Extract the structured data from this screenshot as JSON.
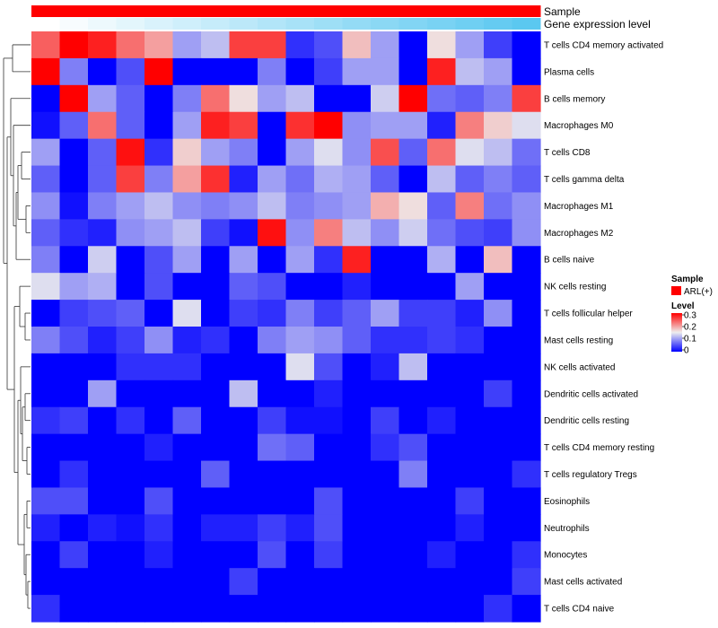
{
  "chart_data": {
    "type": "heatmap",
    "title": "",
    "annotations": [
      {
        "name": "Sample"
      },
      {
        "name": "Gene expression level"
      }
    ],
    "columns": 18,
    "rows": [
      "T cells CD4 memory activated",
      "Plasma cells",
      "B cells memory",
      "Macrophages M0",
      "T cells CD8",
      "T cells gamma delta",
      "Macrophages M1",
      "Macrophages M2",
      "B cells naive",
      "NK cells resting",
      "T cells follicular helper",
      "Mast cells resting",
      "NK cells activated",
      "Dendritic cells activated",
      "Dendritic cells resting",
      "T cells CD4 memory resting",
      "T cells regulatory  Tregs",
      "Eosinophils",
      "Neutrophils",
      "Monocytes",
      "Mast cells activated",
      "T cells CD4 naive"
    ],
    "values": [
      [
        0.24,
        0.32,
        0.28,
        0.23,
        0.2,
        0.1,
        0.12,
        0.26,
        0.26,
        0.03,
        0.05,
        0.18,
        0.1,
        0.0,
        0.16,
        0.1,
        0.04,
        0.0
      ],
      [
        0.32,
        0.08,
        0.0,
        0.05,
        0.32,
        0.0,
        0.0,
        0.0,
        0.08,
        0.0,
        0.04,
        0.1,
        0.1,
        0.0,
        0.28,
        0.12,
        0.1,
        0.0
      ],
      [
        0.0,
        0.32,
        0.1,
        0.06,
        0.0,
        0.08,
        0.23,
        0.16,
        0.1,
        0.12,
        0.0,
        0.0,
        0.13,
        0.32,
        0.07,
        0.06,
        0.08,
        0.26
      ],
      [
        0.01,
        0.06,
        0.23,
        0.06,
        0.0,
        0.1,
        0.28,
        0.26,
        0.0,
        0.27,
        0.32,
        0.09,
        0.1,
        0.1,
        0.02,
        0.22,
        0.17,
        0.14
      ],
      [
        0.1,
        0.0,
        0.06,
        0.29,
        0.03,
        0.17,
        0.1,
        0.08,
        0.0,
        0.1,
        0.14,
        0.09,
        0.25,
        0.06,
        0.23,
        0.14,
        0.12,
        0.07
      ],
      [
        0.06,
        0.0,
        0.06,
        0.26,
        0.08,
        0.2,
        0.27,
        0.02,
        0.1,
        0.07,
        0.11,
        0.1,
        0.06,
        0.0,
        0.12,
        0.06,
        0.08,
        0.06
      ],
      [
        0.09,
        0.01,
        0.08,
        0.1,
        0.12,
        0.09,
        0.08,
        0.09,
        0.12,
        0.08,
        0.09,
        0.1,
        0.19,
        0.16,
        0.06,
        0.22,
        0.07,
        0.09
      ],
      [
        0.06,
        0.03,
        0.02,
        0.09,
        0.1,
        0.12,
        0.04,
        0.01,
        0.29,
        0.09,
        0.22,
        0.12,
        0.09,
        0.13,
        0.07,
        0.05,
        0.04,
        0.09
      ],
      [
        0.08,
        0.0,
        0.13,
        0.0,
        0.05,
        0.1,
        0.0,
        0.1,
        0.0,
        0.1,
        0.03,
        0.28,
        0.0,
        0.0,
        0.11,
        0.0,
        0.18,
        0.0
      ],
      [
        0.14,
        0.1,
        0.11,
        0.0,
        0.05,
        0.0,
        0.0,
        0.06,
        0.05,
        0.0,
        0.0,
        0.02,
        0.0,
        0.0,
        0.0,
        0.1,
        0.0,
        0.0
      ],
      [
        0.0,
        0.04,
        0.05,
        0.06,
        0.0,
        0.14,
        0.0,
        0.04,
        0.03,
        0.08,
        0.04,
        0.06,
        0.1,
        0.04,
        0.04,
        0.02,
        0.09,
        0.0
      ],
      [
        0.08,
        0.05,
        0.02,
        0.04,
        0.09,
        0.02,
        0.03,
        0.0,
        0.08,
        0.1,
        0.09,
        0.06,
        0.03,
        0.03,
        0.04,
        0.03,
        0.0,
        0.0
      ],
      [
        0.0,
        0.0,
        0.0,
        0.03,
        0.03,
        0.03,
        0.0,
        0.0,
        0.0,
        0.14,
        0.05,
        0.0,
        0.02,
        0.12,
        0.0,
        0.0,
        0.0,
        0.0
      ],
      [
        0.0,
        0.0,
        0.1,
        0.0,
        0.0,
        0.0,
        0.0,
        0.12,
        0.0,
        0.0,
        0.02,
        0.0,
        0.0,
        0.0,
        0.0,
        0.0,
        0.04,
        0.0
      ],
      [
        0.03,
        0.04,
        0.0,
        0.03,
        0.0,
        0.06,
        0.0,
        0.0,
        0.04,
        0.01,
        0.01,
        0.0,
        0.04,
        0.0,
        0.02,
        0.0,
        0.0,
        0.0
      ],
      [
        0.0,
        0.0,
        0.0,
        0.0,
        0.02,
        0.0,
        0.0,
        0.0,
        0.07,
        0.06,
        0.0,
        0.0,
        0.03,
        0.05,
        0.0,
        0.0,
        0.0,
        0.0
      ],
      [
        0.0,
        0.03,
        0.0,
        0.0,
        0.0,
        0.0,
        0.06,
        0.0,
        0.0,
        0.0,
        0.0,
        0.0,
        0.0,
        0.08,
        0.0,
        0.0,
        0.0,
        0.03
      ],
      [
        0.05,
        0.05,
        0.0,
        0.0,
        0.05,
        0.0,
        0.0,
        0.0,
        0.0,
        0.0,
        0.05,
        0.0,
        0.0,
        0.0,
        0.0,
        0.04,
        0.0,
        0.0
      ],
      [
        0.02,
        0.0,
        0.02,
        0.01,
        0.03,
        0.0,
        0.02,
        0.02,
        0.04,
        0.02,
        0.05,
        0.0,
        0.0,
        0.0,
        0.0,
        0.02,
        0.0,
        0.0
      ],
      [
        0.0,
        0.04,
        0.0,
        0.0,
        0.02,
        0.0,
        0.0,
        0.0,
        0.05,
        0.0,
        0.04,
        0.0,
        0.0,
        0.0,
        0.02,
        0.0,
        0.0,
        0.03
      ],
      [
        0.0,
        0.0,
        0.0,
        0.0,
        0.0,
        0.0,
        0.0,
        0.04,
        0.0,
        0.0,
        0.0,
        0.0,
        0.0,
        0.0,
        0.0,
        0.0,
        0.0,
        0.04
      ],
      [
        0.03,
        0.0,
        0.0,
        0.0,
        0.0,
        0.0,
        0.0,
        0.0,
        0.0,
        0.0,
        0.0,
        0.0,
        0.0,
        0.0,
        0.0,
        0.0,
        0.03,
        0.0
      ]
    ],
    "gene_expression_level": [
      0.0,
      0.05,
      0.11,
      0.17,
      0.23,
      0.29,
      0.35,
      0.41,
      0.47,
      0.53,
      0.59,
      0.65,
      0.71,
      0.76,
      0.82,
      0.88,
      0.94,
      1.0
    ],
    "color_scale": {
      "min": 0,
      "max": 0.3,
      "stops": [
        {
          "value": 0.0,
          "color": "#0000ff"
        },
        {
          "value": 0.15,
          "color": "#eeeeee"
        },
        {
          "value": 0.3,
          "color": "#ff0000"
        }
      ]
    },
    "legend": {
      "sample": {
        "title": "Sample",
        "label": "ARL(+)",
        "color": "#ff0000"
      },
      "level": {
        "title": "Level",
        "ticks": [
          "0.3",
          "0.2",
          "0.1",
          "0"
        ]
      }
    },
    "annotation_colors": {
      "sample": "#ff0000",
      "level_low": "#ffffff",
      "level_high": "#5bc8f0"
    },
    "dendrogram": "left",
    "legend_position": "right"
  }
}
